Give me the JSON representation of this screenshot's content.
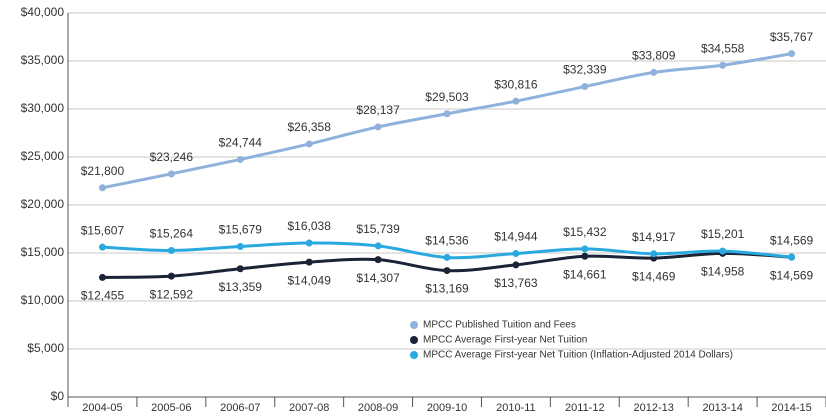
{
  "chart_data": {
    "type": "line",
    "categories": [
      "2004-05",
      "2005-06",
      "2006-07",
      "2007-08",
      "2008-09",
      "2009-10",
      "2010-11",
      "2011-12",
      "2012-13",
      "2013-14",
      "2014-15"
    ],
    "series": [
      {
        "name": "MPCC Published Tuition and Fees",
        "color": "#8fb2dd",
        "values": [
          21800,
          23246,
          24744,
          26358,
          28137,
          29503,
          30816,
          32339,
          33809,
          34558,
          35767
        ],
        "value_labels": [
          "$21,800",
          "$23,246",
          "$24,744",
          "$26,358",
          "$28,137",
          "$29,503",
          "$30,816",
          "$32,339",
          "$33,809",
          "$34,558",
          "$35,767"
        ]
      },
      {
        "name": "MPCC Average First-year Net Tuition",
        "color": "#1b2436",
        "values": [
          12455,
          12592,
          13359,
          14049,
          14307,
          13169,
          13763,
          14661,
          14469,
          14958,
          14569
        ],
        "value_labels": [
          "$12,455",
          "$12,592",
          "$13,359",
          "$14,049",
          "$14,307",
          "$13,169",
          "$13,763",
          "$14,661",
          "$14,469",
          "$14,958",
          "$14,569"
        ]
      },
      {
        "name": "MPCC Average First-year Net Tuition (Inflation-Adjusted 2014 Dollars)",
        "color": "#2aa9e0",
        "values": [
          15607,
          15264,
          15679,
          16038,
          15739,
          14536,
          14944,
          15432,
          14917,
          15201,
          14569
        ],
        "value_labels": [
          "$15,607",
          "$15,264",
          "$15,679",
          "$16,038",
          "$15,739",
          "$14,536",
          "$14,944",
          "$15,432",
          "$14,917",
          "$15,201",
          "$14,569"
        ]
      }
    ],
    "ylim": [
      0,
      40000
    ],
    "yticks": [
      {
        "value": 0,
        "label": "$0"
      },
      {
        "value": 5000,
        "label": "$5,000"
      },
      {
        "value": 10000,
        "label": "$10,000"
      },
      {
        "value": 15000,
        "label": "$15,000"
      },
      {
        "value": 20000,
        "label": "$20,000"
      },
      {
        "value": 25000,
        "label": "$25,000"
      },
      {
        "value": 30000,
        "label": "$30,000"
      },
      {
        "value": 35000,
        "label": "$35,000"
      },
      {
        "value": 40000,
        "label": "$40,000"
      }
    ],
    "grid": true
  }
}
